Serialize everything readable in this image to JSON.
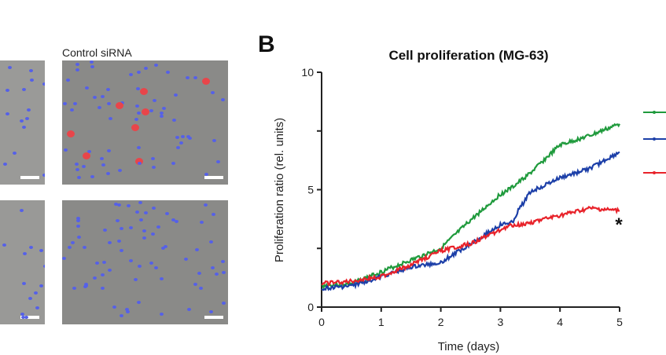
{
  "figure": {
    "panel_letter": "B",
    "image_label": "Control siRNA"
  },
  "chart_data": {
    "type": "line",
    "title": "Cell proliferation (MG-63)",
    "xlabel": "Time (days)",
    "ylabel": "Proliferation ratio (rel. units)",
    "xlim": [
      0,
      5
    ],
    "ylim": [
      0,
      10
    ],
    "xticks": [
      "0",
      "1",
      "2",
      "3",
      "4",
      "5"
    ],
    "yticks": [
      "0",
      "5",
      "10"
    ],
    "grid": false,
    "legend_placement": "right",
    "annotation": "*",
    "x": [
      0,
      0.5,
      1,
      1.5,
      2,
      2.5,
      3,
      3.2,
      3.3,
      3.5,
      4,
      4.5,
      5
    ],
    "series": [
      {
        "name": "green",
        "color": "#1f9a3c",
        "values": [
          0.9,
          1.0,
          1.5,
          2.0,
          2.5,
          3.7,
          4.8,
          5.1,
          5.3,
          5.7,
          6.9,
          7.3,
          7.8
        ]
      },
      {
        "name": "blue",
        "color": "#1c3fa8",
        "values": [
          0.8,
          0.9,
          1.3,
          1.7,
          1.9,
          2.7,
          3.5,
          3.6,
          4.1,
          4.9,
          5.5,
          5.9,
          6.6
        ]
      },
      {
        "name": "red",
        "color": "#e8222a",
        "values": [
          1.0,
          1.1,
          1.3,
          1.8,
          2.4,
          2.7,
          3.3,
          3.5,
          3.5,
          3.6,
          3.9,
          4.2,
          4.1
        ]
      }
    ]
  }
}
